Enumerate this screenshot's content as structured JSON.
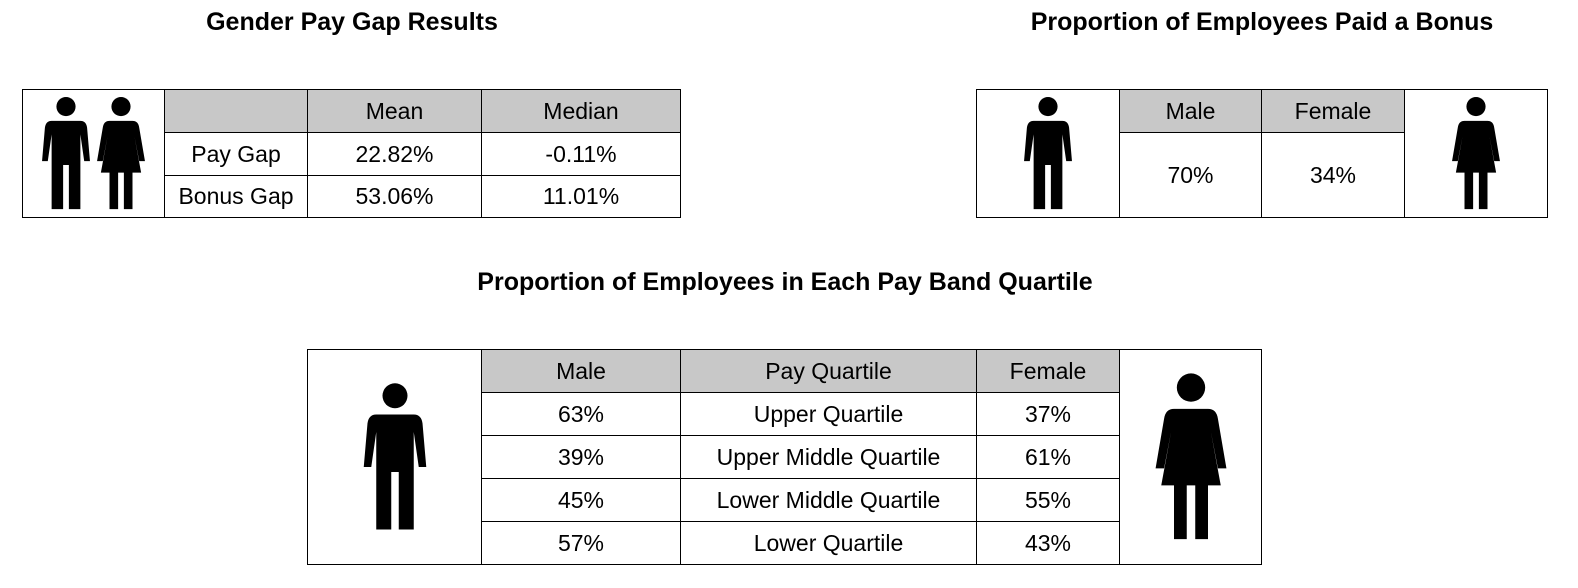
{
  "pay_gap": {
    "title": "Gender Pay Gap Results",
    "header": [
      "Mean",
      "Median"
    ],
    "rows": [
      [
        "Pay Gap",
        "22.82%",
        "-0.11%"
      ],
      [
        "Bonus Gap",
        "53.06%",
        "11.01%"
      ]
    ]
  },
  "bonus": {
    "title": "Proportion of Employees Paid a Bonus",
    "header": [
      "Male",
      "Female"
    ],
    "values": [
      "70%",
      "34%"
    ]
  },
  "quartiles": {
    "title": "Proportion of Employees in Each Pay Band Quartile",
    "header": [
      "Male",
      "Pay Quartile",
      "Female"
    ],
    "rows": [
      [
        "63%",
        "Upper Quartile",
        "37%"
      ],
      [
        "39%",
        "Upper Middle Quartile",
        "61%"
      ],
      [
        "45%",
        "Lower Middle Quartile",
        "55%"
      ],
      [
        "57%",
        "Lower Quartile",
        "43%"
      ]
    ]
  }
}
